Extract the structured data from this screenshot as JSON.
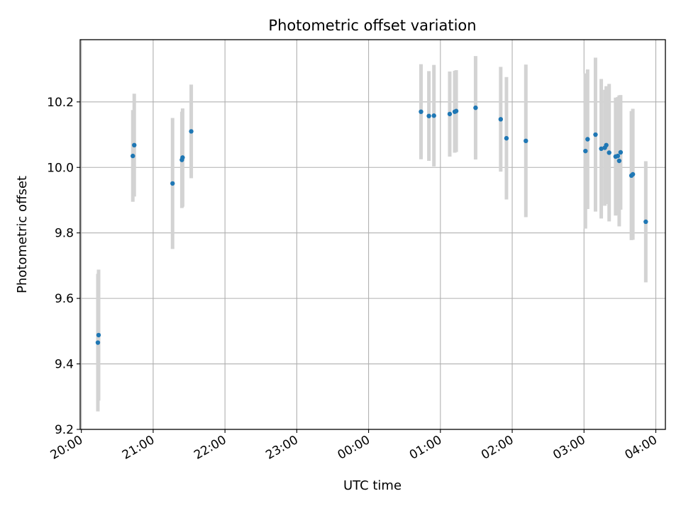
{
  "chart_data": {
    "type": "scatter",
    "title": "Photometric offset variation",
    "xlabel": "UTC time",
    "ylabel": "Photometric offset",
    "xlim": [
      "2000-01-01T19:59:00",
      "2000-01-02T04:08:00"
    ],
    "ylim": [
      9.2,
      10.39
    ],
    "grid": true,
    "x_ticks": [
      {
        "t": "2000-01-01T20:00:00",
        "label": "20:00"
      },
      {
        "t": "2000-01-01T21:00:00",
        "label": "21:00"
      },
      {
        "t": "2000-01-01T22:00:00",
        "label": "22:00"
      },
      {
        "t": "2000-01-01T23:00:00",
        "label": "23:00"
      },
      {
        "t": "2000-01-02T00:00:00",
        "label": "00:00"
      },
      {
        "t": "2000-01-02T01:00:00",
        "label": "01:00"
      },
      {
        "t": "2000-01-02T02:00:00",
        "label": "02:00"
      },
      {
        "t": "2000-01-02T03:00:00",
        "label": "03:00"
      },
      {
        "t": "2000-01-02T04:00:00",
        "label": "04:00"
      }
    ],
    "y_ticks": [
      {
        "v": 9.2,
        "label": "9.2"
      },
      {
        "v": 9.4,
        "label": "9.4"
      },
      {
        "v": 9.6,
        "label": "9.6"
      },
      {
        "v": 9.8,
        "label": "9.8"
      },
      {
        "v": 10.0,
        "label": "10.0"
      },
      {
        "v": 10.2,
        "label": "10.2"
      }
    ],
    "point_color": "#1f77b4",
    "errorbar_color": "#d3d3d3",
    "points": [
      {
        "t": "2000-01-01T20:13:48",
        "y": 9.465,
        "err": 0.21
      },
      {
        "t": "2000-01-01T20:14:24",
        "y": 9.488,
        "err": 0.2
      },
      {
        "t": "2000-01-01T20:43:00",
        "y": 10.035,
        "err": 0.14
      },
      {
        "t": "2000-01-01T20:44:12",
        "y": 10.068,
        "err": 0.157
      },
      {
        "t": "2000-01-01T21:16:12",
        "y": 9.951,
        "err": 0.2
      },
      {
        "t": "2000-01-01T21:24:00",
        "y": 10.023,
        "err": 0.147
      },
      {
        "t": "2000-01-01T21:24:36",
        "y": 10.03,
        "err": 0.15
      },
      {
        "t": "2000-01-01T21:31:48",
        "y": 10.11,
        "err": 0.143
      },
      {
        "t": "2000-01-02T00:43:48",
        "y": 10.17,
        "err": 0.145
      },
      {
        "t": "2000-01-02T00:50:24",
        "y": 10.157,
        "err": 0.137
      },
      {
        "t": "2000-01-02T00:54:36",
        "y": 10.158,
        "err": 0.155
      },
      {
        "t": "2000-01-02T01:07:48",
        "y": 10.163,
        "err": 0.13
      },
      {
        "t": "2000-01-02T01:12:00",
        "y": 10.17,
        "err": 0.125
      },
      {
        "t": "2000-01-02T01:13:12",
        "y": 10.172,
        "err": 0.125
      },
      {
        "t": "2000-01-02T01:29:24",
        "y": 10.182,
        "err": 0.158
      },
      {
        "t": "2000-01-02T01:50:24",
        "y": 10.147,
        "err": 0.16
      },
      {
        "t": "2000-01-02T01:55:12",
        "y": 10.089,
        "err": 0.187
      },
      {
        "t": "2000-01-02T02:11:24",
        "y": 10.081,
        "err": 0.233
      },
      {
        "t": "2000-01-02T03:01:12",
        "y": 10.05,
        "err": 0.237
      },
      {
        "t": "2000-01-02T03:03:00",
        "y": 10.086,
        "err": 0.213
      },
      {
        "t": "2000-01-02T03:09:36",
        "y": 10.1,
        "err": 0.235
      },
      {
        "t": "2000-01-02T03:14:24",
        "y": 10.057,
        "err": 0.213
      },
      {
        "t": "2000-01-02T03:17:24",
        "y": 10.06,
        "err": 0.177
      },
      {
        "t": "2000-01-02T03:18:36",
        "y": 10.068,
        "err": 0.18
      },
      {
        "t": "2000-01-02T03:21:00",
        "y": 10.045,
        "err": 0.21
      },
      {
        "t": "2000-01-02T03:26:24",
        "y": 10.033,
        "err": 0.18
      },
      {
        "t": "2000-01-02T03:28:12",
        "y": 10.035,
        "err": 0.18
      },
      {
        "t": "2000-01-02T03:29:24",
        "y": 10.02,
        "err": 0.2
      },
      {
        "t": "2000-01-02T03:30:36",
        "y": 10.046,
        "err": 0.175
      },
      {
        "t": "2000-01-02T03:39:36",
        "y": 9.975,
        "err": 0.197
      },
      {
        "t": "2000-01-02T03:40:48",
        "y": 9.979,
        "err": 0.2
      },
      {
        "t": "2000-01-02T03:51:36",
        "y": 9.834,
        "err": 0.185
      }
    ]
  }
}
